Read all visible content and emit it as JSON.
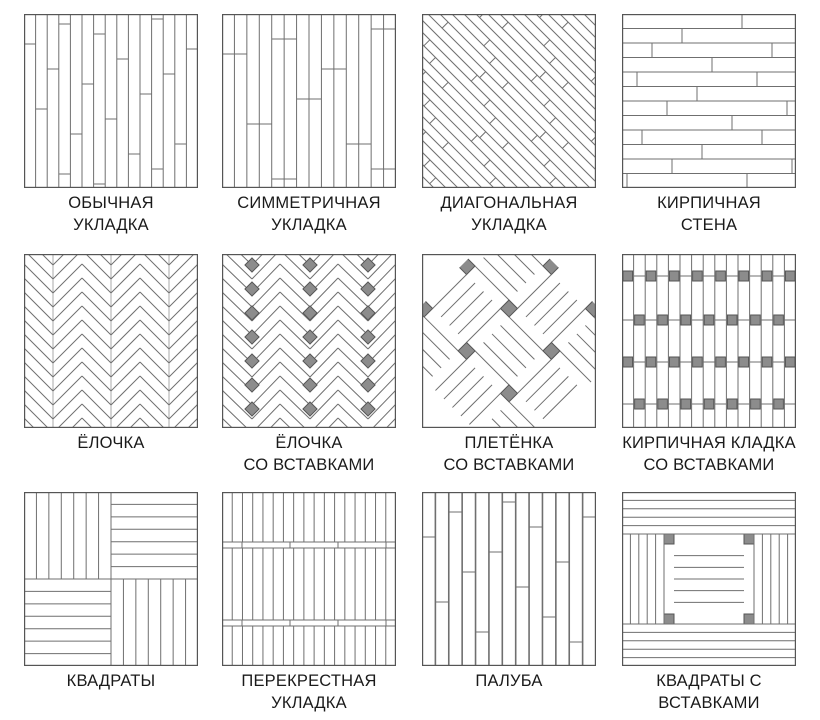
{
  "line_color": "#6f6f6f",
  "border_color": "#555555",
  "insert_color": "#8c8c8c",
  "tiles": [
    {
      "pattern": "regular",
      "caption": [
        "ОБЫЧНАЯ",
        "УКЛАДКА"
      ]
    },
    {
      "pattern": "symmetric",
      "caption": [
        "СИММЕТРИЧНАЯ",
        "УКЛАДКА"
      ]
    },
    {
      "pattern": "diagonal",
      "caption": [
        "ДИАГОНАЛЬНАЯ",
        "УКЛАДКА"
      ]
    },
    {
      "pattern": "brick",
      "caption": [
        "КИРПИЧНАЯ",
        "СТЕНА"
      ]
    },
    {
      "pattern": "herringbone",
      "caption": [
        "ЁЛОЧКА"
      ]
    },
    {
      "pattern": "herringbone-inserts",
      "caption": [
        "ЁЛОЧКА",
        "СО ВСТАВКАМИ"
      ]
    },
    {
      "pattern": "weave",
      "caption": [
        "ПЛЕТЁНКА",
        "СО ВСТАВКАМИ"
      ]
    },
    {
      "pattern": "brick-inserts",
      "caption": [
        "КИРПИЧНАЯ КЛАДКА",
        "СО ВСТАВКАМИ"
      ]
    },
    {
      "pattern": "squares",
      "caption": [
        "КВАДРАТЫ"
      ]
    },
    {
      "pattern": "cross",
      "caption": [
        "ПЕРЕКРЕСТНАЯ",
        "УКЛАДКА"
      ]
    },
    {
      "pattern": "deck",
      "caption": [
        "ПАЛУБА"
      ]
    },
    {
      "pattern": "squares-inserts",
      "caption": [
        "КВАДРАТЫ С",
        "ВСТАВКАМИ"
      ]
    }
  ]
}
